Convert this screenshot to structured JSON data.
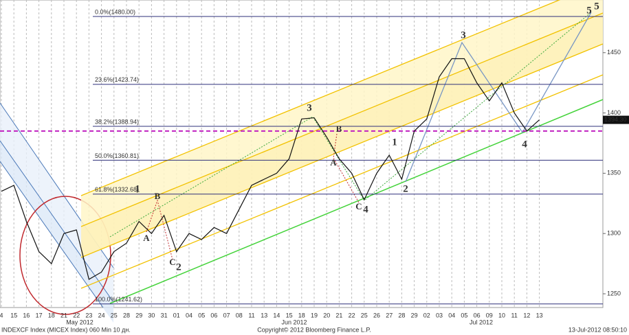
{
  "chart_data": {
    "type": "line",
    "categories": [
      "4",
      "15",
      "16",
      "17",
      "18",
      "21",
      "22",
      "23",
      "24",
      "25",
      "28",
      "29",
      "30",
      "31",
      "01",
      "04",
      "05",
      "06",
      "07",
      "08",
      "11",
      "13",
      "14",
      "15",
      "18",
      "19",
      "20",
      "21",
      "22",
      "25",
      "26",
      "27",
      "28",
      "29",
      "02",
      "03",
      "04",
      "05",
      "06",
      "09",
      "10",
      "11",
      "12",
      "13"
    ],
    "values": [
      1335,
      1340,
      1310,
      1285,
      1275,
      1300,
      1303,
      1262,
      1268,
      1285,
      1292,
      1310,
      1300,
      1315,
      1285,
      1300,
      1295,
      1305,
      1300,
      1320,
      1340,
      1345,
      1350,
      1362,
      1395,
      1396,
      1380,
      1362,
      1350,
      1328,
      1350,
      1365,
      1345,
      1385,
      1395,
      1430,
      1445,
      1445,
      1425,
      1410,
      1425,
      1400,
      1385,
      1394.3
    ],
    "color": "#111111",
    "ylim": [
      1238.6,
      1493.7
    ],
    "yticks": [
      1250,
      1300,
      1350,
      1400,
      1450
    ],
    "grid": true,
    "months": [
      "May 2012",
      "Jun 2012",
      "Jul 2012"
    ],
    "fib_levels": [
      {
        "label": "0.0%(1480.00)",
        "value": 1480
      },
      {
        "label": "23.6%(1423.74)",
        "value": 1423.74
      },
      {
        "label": "38.2%(1388.94)",
        "value": 1388.94
      },
      {
        "label": "50.0%(1360.81)",
        "value": 1360.81
      },
      {
        "label": "61.8%(1332.68)",
        "value": 1332.68
      },
      {
        "label": "100.0%(1241.62)",
        "value": 1241.62
      }
    ],
    "fib_color": "#2d2f7a",
    "reference_line": {
      "value": 1385,
      "color": "#c020c0"
    },
    "last_price": {
      "value": 1394.3,
      "label": "1394.30"
    },
    "wave_labels": [
      {
        "text": "1",
        "color": "#36a83a"
      },
      {
        "text": "2",
        "color": "#36a83a"
      },
      {
        "text": "3",
        "color": "#36a83a"
      },
      {
        "text": "4",
        "color": "#36a83a"
      },
      {
        "text": "5",
        "color": "#36a83a"
      },
      {
        "text": "A",
        "color": "#c0282d"
      },
      {
        "text": "B",
        "color": "#c0282d"
      },
      {
        "text": "C",
        "color": "#c0282d"
      },
      {
        "text": "B",
        "color": "#c0282d"
      },
      {
        "text": "A",
        "color": "#c0282d"
      },
      {
        "text": "C",
        "color": "#c0282d"
      },
      {
        "text": "1",
        "color": "#7896c4"
      },
      {
        "text": "2",
        "color": "#7896c4"
      },
      {
        "text": "3",
        "color": "#7896c4"
      },
      {
        "text": "4",
        "color": "#7896c4"
      },
      {
        "text": "5",
        "color": "#7896c4"
      }
    ],
    "footer_left": "INDEXCF Index (MICEX Index) 060 Min 10 дн.",
    "footer_center": "Copyright© 2012 Bloomberg Finance L.P.",
    "footer_right": "13-Jul-2012 08:50:10"
  }
}
